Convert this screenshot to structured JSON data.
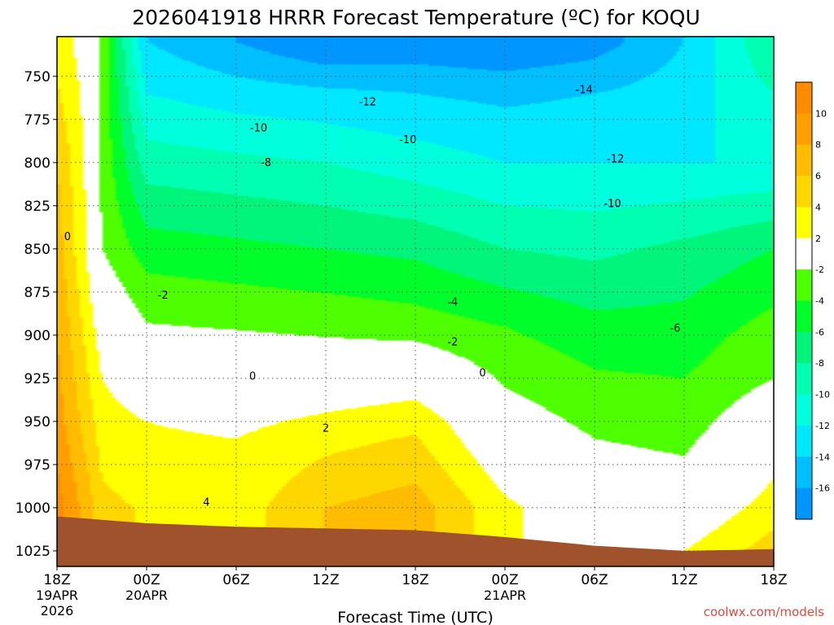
{
  "title": "2026041918 HRRR Forecast Temperature (ºC) for KOQU",
  "credit": "coolwx.com/models",
  "chart_data": {
    "type": "heatmap",
    "title": "2026041918 HRRR Forecast Temperature (ºC) for KOQU",
    "xlabel": "Forecast Time (UTC)",
    "ylabel": "",
    "x_range_hours": [
      0,
      48
    ],
    "y_range_hpa": [
      727,
      1034
    ],
    "y_reversed": true,
    "grid": true,
    "y_ticks": [
      750,
      775,
      800,
      825,
      850,
      875,
      900,
      925,
      950,
      975,
      1000,
      1025
    ],
    "x_ticks": [
      {
        "hour": 0,
        "label": "18Z",
        "sub1": "19APR",
        "sub2": "2026"
      },
      {
        "hour": 6,
        "label": "00Z",
        "sub1": "20APR",
        "sub2": ""
      },
      {
        "hour": 12,
        "label": "06Z",
        "sub1": "",
        "sub2": ""
      },
      {
        "hour": 18,
        "label": "12Z",
        "sub1": "",
        "sub2": ""
      },
      {
        "hour": 24,
        "label": "18Z",
        "sub1": "",
        "sub2": ""
      },
      {
        "hour": 30,
        "label": "00Z",
        "sub1": "21APR",
        "sub2": ""
      },
      {
        "hour": 36,
        "label": "06Z",
        "sub1": "",
        "sub2": ""
      },
      {
        "hour": 42,
        "label": "12Z",
        "sub1": "",
        "sub2": ""
      },
      {
        "hour": 48,
        "label": "18Z",
        "sub1": "",
        "sub2": ""
      }
    ],
    "colorbar": {
      "labels": [
        "10",
        "8",
        "6",
        "4",
        "2",
        "-2",
        "-4",
        "-6",
        "-8",
        "-10",
        "-12",
        "-14",
        "-16"
      ],
      "bins": [
        {
          "range": [
            10,
            12
          ],
          "color": "#ff8c00"
        },
        {
          "range": [
            8,
            10
          ],
          "color": "#ff9e00"
        },
        {
          "range": [
            6,
            8
          ],
          "color": "#ffbc00"
        },
        {
          "range": [
            4,
            6
          ],
          "color": "#ffd700"
        },
        {
          "range": [
            2,
            4
          ],
          "color": "#ffff00"
        },
        {
          "range": [
            -2,
            2
          ],
          "color": "#ffffff"
        },
        {
          "range": [
            -4,
            -2
          ],
          "color": "#4dff00"
        },
        {
          "range": [
            -6,
            -4
          ],
          "color": "#00ff2a"
        },
        {
          "range": [
            -8,
            -6
          ],
          "color": "#00f57a"
        },
        {
          "range": [
            -10,
            -8
          ],
          "color": "#00ffb0"
        },
        {
          "range": [
            -12,
            -10
          ],
          "color": "#00ffdc"
        },
        {
          "range": [
            -14,
            -12
          ],
          "color": "#00e8ff"
        },
        {
          "range": [
            -16,
            -14
          ],
          "color": "#00bfff"
        },
        {
          "range": [
            -18,
            -16
          ],
          "color": "#0096ff"
        }
      ]
    },
    "ground_color": "#a0522d",
    "surface_pressure_hpa": [
      {
        "hour": 0,
        "p": 1005
      },
      {
        "hour": 6,
        "p": 1009
      },
      {
        "hour": 12,
        "p": 1011
      },
      {
        "hour": 18,
        "p": 1012
      },
      {
        "hour": 24,
        "p": 1013
      },
      {
        "hour": 30,
        "p": 1017
      },
      {
        "hour": 36,
        "p": 1022
      },
      {
        "hour": 42,
        "p": 1025
      },
      {
        "hour": 48,
        "p": 1024
      }
    ],
    "temperature_profiles": [
      {
        "hour": 0,
        "levels": [
          [
            730,
            3
          ],
          [
            800,
            6
          ],
          [
            900,
            8
          ],
          [
            950,
            9
          ],
          [
            1000,
            11
          ]
        ]
      },
      {
        "hour": 2,
        "levels": [
          [
            730,
            1
          ],
          [
            800,
            1.6
          ],
          [
            850,
            1.8
          ],
          [
            900,
            3.5
          ],
          [
            950,
            5
          ],
          [
            1000,
            7
          ]
        ]
      },
      {
        "hour": 3,
        "levels": [
          [
            730,
            -2.5
          ],
          [
            800,
            -2.5
          ],
          [
            850,
            -2
          ],
          [
            900,
            1
          ],
          [
            950,
            3
          ],
          [
            1000,
            4.5
          ]
        ]
      },
      {
        "hour": 6,
        "levels": [
          [
            730,
            -14
          ],
          [
            760,
            -12
          ],
          [
            800,
            -9
          ],
          [
            850,
            -5
          ],
          [
            885,
            -2.5
          ],
          [
            925,
            0
          ],
          [
            950,
            2
          ],
          [
            1000,
            3.8
          ]
        ]
      },
      {
        "hour": 12,
        "levels": [
          [
            730,
            -16
          ],
          [
            760,
            -13
          ],
          [
            800,
            -9.5
          ],
          [
            850,
            -5.5
          ],
          [
            890,
            -2.5
          ],
          [
            925,
            0
          ],
          [
            960,
            2
          ],
          [
            1000,
            3
          ]
        ]
      },
      {
        "hour": 18,
        "levels": [
          [
            730,
            -18
          ],
          [
            760,
            -13.5
          ],
          [
            800,
            -10
          ],
          [
            850,
            -6
          ],
          [
            895,
            -2.5
          ],
          [
            925,
            0
          ],
          [
            955,
            3
          ],
          [
            1000,
            6
          ]
        ]
      },
      {
        "hour": 24,
        "levels": [
          [
            730,
            -17.5
          ],
          [
            760,
            -14
          ],
          [
            800,
            -11
          ],
          [
            850,
            -6.5
          ],
          [
            895,
            -3
          ],
          [
            925,
            0.5
          ],
          [
            950,
            3.5
          ],
          [
            1000,
            7
          ]
        ]
      },
      {
        "hour": 30,
        "levels": [
          [
            730,
            -18
          ],
          [
            760,
            -14.5
          ],
          [
            800,
            -12
          ],
          [
            850,
            -8
          ],
          [
            895,
            -4
          ],
          [
            930,
            -2
          ],
          [
            965,
            0
          ],
          [
            1000,
            2.5
          ]
        ]
      },
      {
        "hour": 36,
        "levels": [
          [
            730,
            -17
          ],
          [
            760,
            -14
          ],
          [
            800,
            -12
          ],
          [
            850,
            -8.5
          ],
          [
            900,
            -5
          ],
          [
            960,
            -2
          ],
          [
            1000,
            0
          ]
        ]
      },
      {
        "hour": 42,
        "levels": [
          [
            730,
            -14
          ],
          [
            760,
            -13
          ],
          [
            800,
            -12
          ],
          [
            850,
            -7.5
          ],
          [
            900,
            -5
          ],
          [
            950,
            -3
          ],
          [
            990,
            -1
          ],
          [
            1025,
            2
          ]
        ]
      },
      {
        "hour": 48,
        "levels": [
          [
            730,
            -8
          ],
          [
            760,
            -10
          ],
          [
            800,
            -12
          ],
          [
            850,
            -6
          ],
          [
            900,
            -3
          ],
          [
            925,
            -2
          ],
          [
            950,
            0
          ],
          [
            1000,
            3
          ],
          [
            1025,
            5
          ]
        ]
      }
    ],
    "contour_labels": [
      {
        "value": "0",
        "hour": 0.7,
        "p": 843
      },
      {
        "value": "-10",
        "hour": 13.5,
        "p": 780
      },
      {
        "value": "-8",
        "hour": 14,
        "p": 800
      },
      {
        "value": "-12",
        "hour": 20.8,
        "p": 765
      },
      {
        "value": "-10",
        "hour": 23.5,
        "p": 787
      },
      {
        "value": "-14",
        "hour": 35.3,
        "p": 758
      },
      {
        "value": "-12",
        "hour": 37.4,
        "p": 798
      },
      {
        "value": "-10",
        "hour": 37.2,
        "p": 824
      },
      {
        "value": "-6",
        "hour": 41.4,
        "p": 896
      },
      {
        "value": "-4",
        "hour": 26.5,
        "p": 881
      },
      {
        "value": "-2",
        "hour": 26.5,
        "p": 904
      },
      {
        "value": "0",
        "hour": 28.5,
        "p": 922
      },
      {
        "value": "0",
        "hour": 13.1,
        "p": 924
      },
      {
        "value": "2",
        "hour": 18,
        "p": 954
      },
      {
        "value": "-2",
        "hour": 7.1,
        "p": 877
      },
      {
        "value": "4",
        "hour": 10,
        "p": 997
      }
    ]
  }
}
